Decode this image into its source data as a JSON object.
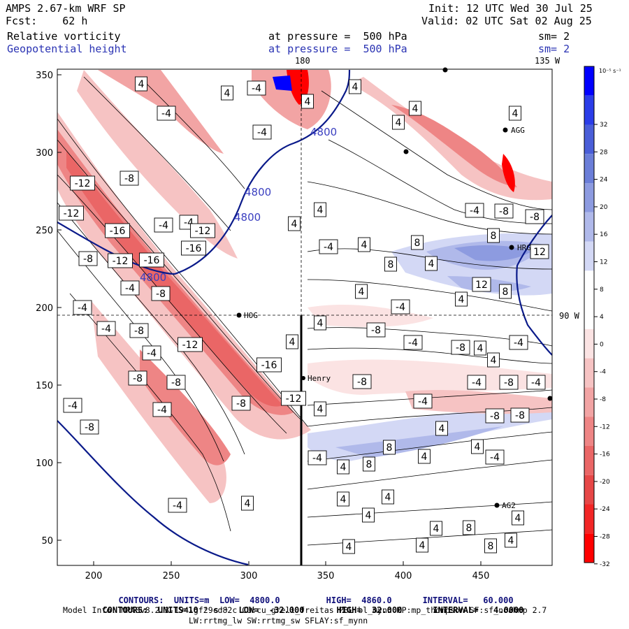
{
  "header": {
    "model": "AMPS 2.67-km WRF SP",
    "forecast": "Fcst:    62 h",
    "init": "Init: 12 UTC Wed 30 Jul 25",
    "valid": "Valid: 02 UTC Sat 02 Aug 25",
    "field1": "Relative vorticity",
    "field2": "Geopotential height",
    "level1": "at pressure =  500 hPa",
    "level2": "at pressure =  500 hPa",
    "smooth1": "sm= 2",
    "smooth2": "sm= 2"
  },
  "map": {
    "lon_top_left": "180",
    "lon_top_right": "135 W",
    "lat_right": "90 W",
    "stations": [
      "AGG",
      "HRG",
      "HOG",
      "Henry",
      "AG2"
    ]
  },
  "colorbar": {
    "unit": "10⁻⁵ s⁻¹",
    "labels": [
      "32",
      "28",
      "24",
      "20",
      "16",
      "12",
      "8",
      "4",
      "0",
      "-4",
      "-8",
      "-12",
      "-16",
      "-20",
      "-24",
      "-28",
      "-32"
    ],
    "colors": [
      "#0000ff",
      "#2b3de8",
      "#4a5ed8",
      "#6b7ed8",
      "#8d9be0",
      "#b0b9ea",
      "#d3d8f5",
      "#ffffff",
      "#ffffff",
      "#fbe3e3",
      "#f6c3c3",
      "#f2a4a4",
      "#ee8585",
      "#ea6666",
      "#e64747",
      "#f22626",
      "#ff0000"
    ]
  },
  "axes": {
    "x_ticks": [
      "200",
      "250",
      "300",
      "350",
      "400",
      "450"
    ],
    "y_ticks": [
      "350",
      "300",
      "250",
      "200",
      "150",
      "100",
      "50"
    ]
  },
  "contour_labels": {
    "height": [
      "4800",
      "4800",
      "4800",
      "4800"
    ],
    "vorticity": [
      "4",
      "-4",
      "-4",
      "4",
      "4",
      "4",
      "4",
      "-4",
      "4",
      "4",
      "-12",
      "-8",
      "-12",
      "-16",
      "-4",
      "-4",
      "-16",
      "-8",
      "-12",
      "-4",
      "-12",
      "-16",
      "-8",
      "-4",
      "-4",
      "-8",
      "-4",
      "-12",
      "-8",
      "-8",
      "-16",
      "-4",
      "-8",
      "-4",
      "-8",
      "-12",
      "4",
      "-4",
      "-4",
      "4",
      "4",
      "8",
      "8",
      "4",
      "4",
      "8",
      "12",
      "12",
      "8",
      "4",
      "4",
      "-4",
      "-4",
      "-4",
      "-8",
      "-8",
      "-8",
      "-4",
      "-8",
      "-4",
      "4",
      "4",
      "4",
      "8",
      "4",
      "-4",
      "4",
      "4",
      "8",
      "4",
      "4",
      "4",
      "4",
      "4",
      "4",
      "4",
      "8",
      "4",
      "8",
      "4",
      "4",
      "4",
      "-4",
      "-8",
      "-8",
      "-8",
      "-4",
      "-8",
      "-4",
      "-4"
    ]
  },
  "footer": {
    "line1_a": "CONTOURS:  UNITS=m  LOW=  4800.0",
    "line1_b": "HIGH=  4860.0",
    "line1_c": "INTERVAL=   60.000",
    "line2_a": "CONTOURS:  UNITS=10⁻⁵ s⁻¹  LOW=  -32.000",
    "line2_b": "HIGH=  32.000",
    "line2_c": "INTERVAL=   4.0000",
    "line3": "Model Info: MPASv8.2.3-194-gf29cd82c CU:cu_grell_freitas PBL:bl_mynn MP:mp_thompson SF:sf_noahmp 2.7",
    "line4": "LW:rrtmg_lw SW:rrtmg_sw SFLAY:sf_mynn"
  }
}
